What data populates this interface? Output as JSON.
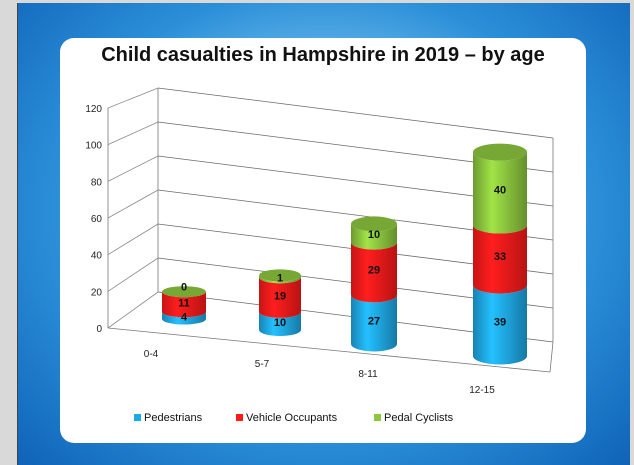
{
  "chart_data": {
    "type": "bar",
    "stacked": true,
    "style": "3d-cylinder",
    "title": "Child casualties in Hampshire in 2019 – by age",
    "categories": [
      "0-4",
      "5-7",
      "8-11",
      "12-15"
    ],
    "ylim": [
      0,
      120
    ],
    "yticks": [
      "0",
      "20",
      "40",
      "60",
      "80",
      "100",
      "120"
    ],
    "grid": true,
    "legend_position": "bottom",
    "series": [
      {
        "name": "Pedestrians",
        "values": [
          4,
          10,
          27,
          39
        ],
        "color": "#1fa8e6"
      },
      {
        "name": "Vehicle Occupants",
        "values": [
          11,
          19,
          29,
          33
        ],
        "color": "#ff1a1a"
      },
      {
        "name": "Pedal Cyclists",
        "values": [
          0,
          1,
          10,
          40
        ],
        "color": "#8cc63e"
      }
    ]
  }
}
